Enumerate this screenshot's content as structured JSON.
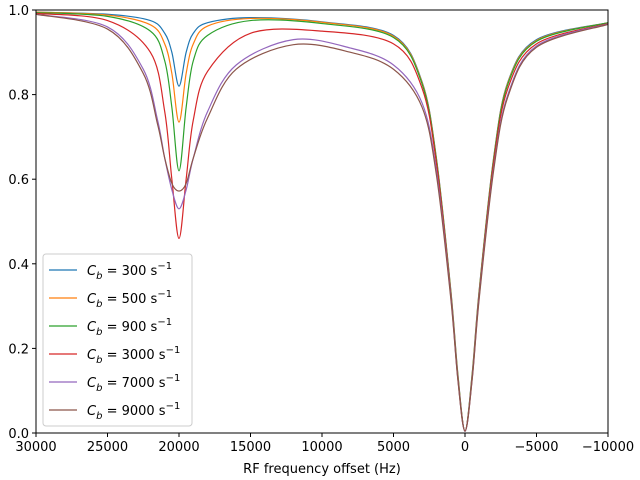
{
  "chart_data": {
    "type": "line",
    "title": "",
    "xlabel": "RF frequency offset (Hz)",
    "ylabel": "",
    "xlim": [
      30000,
      -10000
    ],
    "ylim": [
      0.0,
      1.0
    ],
    "x_ticks": [
      30000,
      25000,
      20000,
      15000,
      10000,
      5000,
      0,
      -5000,
      -10000
    ],
    "x_tick_labels": [
      "30000",
      "25000",
      "20000",
      "15000",
      "10000",
      "5000",
      "0",
      "−5000",
      "−10000"
    ],
    "y_ticks": [
      0.0,
      0.2,
      0.4,
      0.6,
      0.8,
      1.0
    ],
    "y_tick_labels": [
      "0.0",
      "0.2",
      "0.4",
      "0.6",
      "0.8",
      "1.0"
    ],
    "legend_position": "lower-left",
    "series": [
      {
        "name": "C_b = 300 s^-1",
        "label_sym": "C",
        "label_sub": "b",
        "label_val": " = 300 s",
        "label_sup": "−1",
        "color": "#1f77b4",
        "x": [
          30000,
          25000,
          22000,
          21000,
          20500,
          20000,
          19500,
          19000,
          18000,
          15000,
          10000,
          5000,
          3000,
          2000,
          1000,
          500,
          0,
          -500,
          -1000,
          -2000,
          -3000,
          -5000,
          -10000
        ],
        "y": [
          0.995,
          0.99,
          0.975,
          0.945,
          0.9,
          0.82,
          0.9,
          0.945,
          0.97,
          0.982,
          0.972,
          0.94,
          0.83,
          0.65,
          0.34,
          0.14,
          0.005,
          0.14,
          0.34,
          0.65,
          0.83,
          0.93,
          0.97
        ]
      },
      {
        "name": "C_b = 500 s^-1",
        "label_sym": "C",
        "label_sub": "b",
        "label_val": " = 500 s",
        "label_sup": "−1",
        "color": "#ff7f0e",
        "x": [
          30000,
          25000,
          22000,
          21000,
          20500,
          20000,
          19500,
          19000,
          18000,
          15000,
          10000,
          5000,
          3000,
          2000,
          1000,
          500,
          0,
          -500,
          -1000,
          -2000,
          -3000,
          -5000,
          -10000
        ],
        "y": [
          0.995,
          0.988,
          0.965,
          0.92,
          0.85,
          0.735,
          0.85,
          0.92,
          0.962,
          0.98,
          0.971,
          0.938,
          0.828,
          0.648,
          0.338,
          0.138,
          0.005,
          0.138,
          0.338,
          0.648,
          0.828,
          0.928,
          0.97
        ]
      },
      {
        "name": "C_b = 900 s^-1",
        "label_sym": "C",
        "label_sub": "b",
        "label_val": " = 900 s",
        "label_sup": "−1",
        "color": "#2ca02c",
        "x": [
          30000,
          25000,
          22000,
          21000,
          20500,
          20000,
          19500,
          19000,
          18000,
          15000,
          10000,
          5000,
          3000,
          2000,
          1000,
          500,
          0,
          -500,
          -1000,
          -2000,
          -3000,
          -5000,
          -10000
        ],
        "y": [
          0.994,
          0.985,
          0.95,
          0.88,
          0.77,
          0.62,
          0.77,
          0.88,
          0.94,
          0.975,
          0.968,
          0.935,
          0.825,
          0.645,
          0.335,
          0.135,
          0.005,
          0.135,
          0.335,
          0.645,
          0.825,
          0.926,
          0.97
        ]
      },
      {
        "name": "C_b = 3000 s^-1",
        "label_sym": "C",
        "label_sub": "b",
        "label_val": " = 3000 s",
        "label_sup": "−1",
        "color": "#d62728",
        "x": [
          30000,
          25000,
          22000,
          21000,
          20500,
          20000,
          19500,
          19000,
          18000,
          15000,
          10000,
          5000,
          3000,
          2000,
          1000,
          500,
          0,
          -500,
          -1000,
          -2000,
          -3000,
          -5000,
          -10000
        ],
        "y": [
          0.992,
          0.975,
          0.9,
          0.76,
          0.6,
          0.46,
          0.6,
          0.74,
          0.855,
          0.945,
          0.95,
          0.92,
          0.815,
          0.638,
          0.33,
          0.13,
          0.005,
          0.13,
          0.33,
          0.638,
          0.815,
          0.92,
          0.968
        ]
      },
      {
        "name": "C_b = 7000 s^-1",
        "label_sym": "C",
        "label_sub": "b",
        "label_val": " = 7000 s",
        "label_sup": "−1",
        "color": "#9467bd",
        "x": [
          30000,
          25000,
          22500,
          21500,
          21000,
          20500,
          20000,
          19500,
          19000,
          18000,
          16000,
          12000,
          8000,
          5000,
          3000,
          2000,
          1000,
          500,
          0,
          -500,
          -1000,
          -2000,
          -3000,
          -5000,
          -10000
        ],
        "y": [
          0.99,
          0.96,
          0.86,
          0.74,
          0.65,
          0.575,
          0.53,
          0.575,
          0.65,
          0.76,
          0.87,
          0.93,
          0.91,
          0.87,
          0.78,
          0.62,
          0.325,
          0.128,
          0.004,
          0.128,
          0.325,
          0.625,
          0.8,
          0.915,
          0.967
        ]
      },
      {
        "name": "C_b = 9000 s^-1",
        "label_sym": "C",
        "label_sub": "b",
        "label_val": " = 9000 s",
        "label_sup": "−1",
        "color": "#8c564b",
        "x": [
          30000,
          25000,
          22500,
          21500,
          21000,
          20500,
          20000,
          19500,
          19000,
          18000,
          16000,
          12000,
          8000,
          5000,
          3000,
          2000,
          1000,
          500,
          0,
          -500,
          -1000,
          -2000,
          -3000,
          -5000,
          -10000
        ],
        "y": [
          0.99,
          0.955,
          0.85,
          0.73,
          0.65,
          0.59,
          0.572,
          0.59,
          0.65,
          0.745,
          0.86,
          0.918,
          0.9,
          0.86,
          0.77,
          0.61,
          0.32,
          0.126,
          0.004,
          0.126,
          0.32,
          0.62,
          0.795,
          0.912,
          0.966
        ]
      }
    ]
  }
}
